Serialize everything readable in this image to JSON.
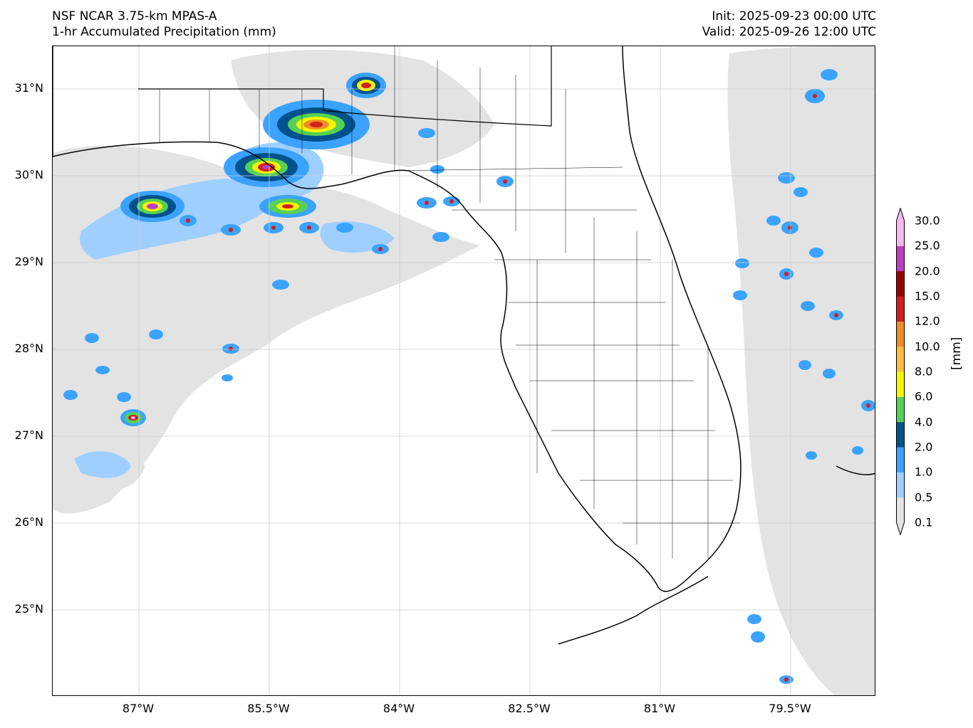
{
  "header": {
    "left_line1": "NSF NCAR 3.75-km MPAS-A",
    "left_line2": "1-hr Accumulated Precipitation (mm)",
    "right_line1": "Init: 2025-09-23 00:00 UTC",
    "right_line2": "Valid: 2025-09-26 12:00 UTC"
  },
  "axes": {
    "lat_labels": [
      "31°N",
      "30°N",
      "29°N",
      "28°N",
      "27°N",
      "26°N",
      "25°N"
    ],
    "lon_labels": [
      "87°W",
      "85.5°W",
      "84°W",
      "82.5°W",
      "81°W",
      "79.5°W"
    ]
  },
  "colorbar": {
    "unit": "[mm]",
    "levels": [
      "0.1",
      "0.5",
      "1.0",
      "2.0",
      "4.0",
      "6.0",
      "8.0",
      "10.0",
      "12.0",
      "15.0",
      "20.0",
      "25.0",
      "30.0"
    ],
    "colors": [
      "#e3e3e3",
      "#9ecfff",
      "#3ba3ff",
      "#00528c",
      "#55d155",
      "#f6f600",
      "#ffbe3c",
      "#f08c28",
      "#d21e1e",
      "#9b0000",
      "#c03cc0",
      "#f5b8f0"
    ]
  },
  "colors": {
    "land_outline": "#000000",
    "grid": "#cccccc",
    "light_precip": "#e3e3e3"
  }
}
